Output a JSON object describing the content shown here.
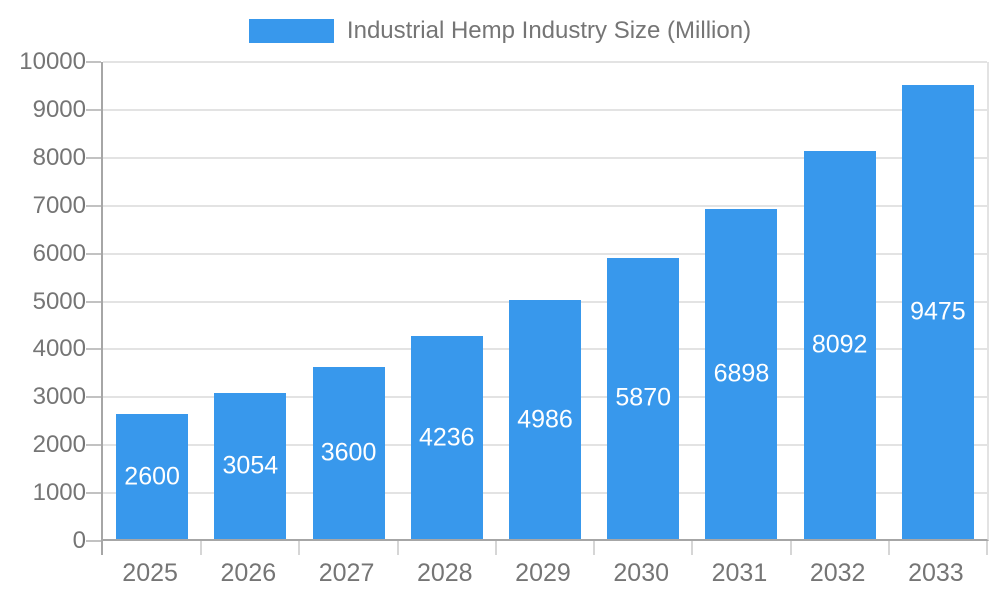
{
  "legend": {
    "swatch_color": "#3898EC"
  },
  "chart_data": {
    "type": "bar",
    "title": "Industrial Hemp Industry Size (Million)",
    "categories": [
      "2025",
      "2026",
      "2027",
      "2028",
      "2029",
      "2030",
      "2031",
      "2032",
      "2033"
    ],
    "values": [
      2600,
      3054,
      3600,
      4236,
      4986,
      5870,
      6898,
      8092,
      9475
    ],
    "xlabel": "",
    "ylabel": "",
    "ylim": [
      0,
      10000
    ],
    "ytick_step": 1000,
    "ytick_labels": [
      "0",
      "1000",
      "2000",
      "3000",
      "4000",
      "5000",
      "6000",
      "7000",
      "8000",
      "9000",
      "10000"
    ],
    "grid": true,
    "legend_position": "top",
    "bar_color": "#3898EC",
    "value_label_color": "#ffffff",
    "axis_text_color": "#757575",
    "grid_color": "#E3E3E3",
    "axis_line_color": "#A6A6A6"
  }
}
